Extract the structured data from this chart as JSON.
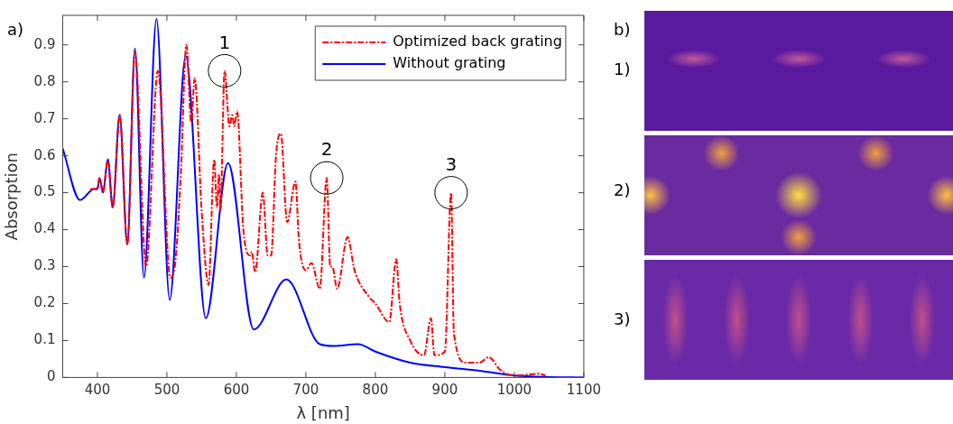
{
  "chart_data": {
    "type": "line",
    "xlabel": "λ [nm]",
    "ylabel": "Absorption",
    "xlim": [
      350,
      1100
    ],
    "xticks": [
      400,
      500,
      600,
      700,
      800,
      900,
      1000,
      1100
    ],
    "ylim": [
      0,
      0.98
    ],
    "yticks": [
      0,
      0.1,
      0.2,
      0.3,
      0.4,
      0.5,
      0.6,
      0.7,
      0.8,
      0.9
    ],
    "grid": false,
    "legend": "top right",
    "series": [
      {
        "name": "Optimized back grating",
        "color": "#ff0000",
        "line_style": "dashed",
        "x": [
          390,
          400,
          403,
          408,
          415,
          422,
          432,
          443,
          454,
          470,
          487,
          505,
          512,
          520,
          528,
          535,
          540,
          550,
          560,
          568,
          572,
          575,
          577,
          583,
          590,
          594,
          597,
          601,
          610,
          620,
          622,
          627,
          638,
          645,
          650,
          657,
          664,
          673,
          685,
          690,
          700,
          708,
          720,
          730,
          735,
          738,
          745,
          760,
          770,
          790,
          800,
          820,
          830,
          835,
          850,
          870,
          880,
          885,
          900,
          909,
          913,
          930,
          950,
          963,
          980,
          1000,
          1035,
          1045
        ],
        "values": [
          0.51,
          0.51,
          0.54,
          0.5,
          0.59,
          0.46,
          0.71,
          0.36,
          0.88,
          0.3,
          0.83,
          0.27,
          0.31,
          0.55,
          0.9,
          0.69,
          0.81,
          0.45,
          0.25,
          0.59,
          0.46,
          0.55,
          0.45,
          0.83,
          0.68,
          0.71,
          0.68,
          0.72,
          0.4,
          0.33,
          0.34,
          0.285,
          0.5,
          0.33,
          0.33,
          0.6,
          0.66,
          0.42,
          0.53,
          0.37,
          0.29,
          0.31,
          0.24,
          0.54,
          0.3,
          0.3,
          0.24,
          0.38,
          0.29,
          0.22,
          0.2,
          0.15,
          0.32,
          0.2,
          0.1,
          0.06,
          0.16,
          0.06,
          0.07,
          0.5,
          0.12,
          0.04,
          0.04,
          0.055,
          0.02,
          0.005,
          0.01,
          0.005
        ]
      },
      {
        "name": "Without grating",
        "color": "#0000ff",
        "line_style": "solid",
        "x": [
          350,
          375,
          395,
          400,
          403,
          408,
          415,
          422,
          432,
          443,
          454,
          467,
          485,
          504,
          527,
          556,
          588,
          625,
          672,
          720,
          740,
          775,
          800,
          850,
          900,
          950,
          1000,
          1050,
          1100
        ],
        "values": [
          0.62,
          0.48,
          0.51,
          0.51,
          0.54,
          0.5,
          0.59,
          0.46,
          0.71,
          0.36,
          0.89,
          0.27,
          0.97,
          0.21,
          0.87,
          0.16,
          0.58,
          0.13,
          0.265,
          0.09,
          0.085,
          0.09,
          0.07,
          0.04,
          0.028,
          0.018,
          0.005,
          0.001,
          0
        ]
      }
    ],
    "annotations": [
      {
        "text": "1",
        "x": 583,
        "y": 0.83
      },
      {
        "text": "2",
        "x": 730,
        "y": 0.54
      },
      {
        "text": "3",
        "x": 909,
        "y": 0.5
      },
      "a)",
      "b)",
      "1)",
      "2)",
      "3)"
    ]
  }
}
